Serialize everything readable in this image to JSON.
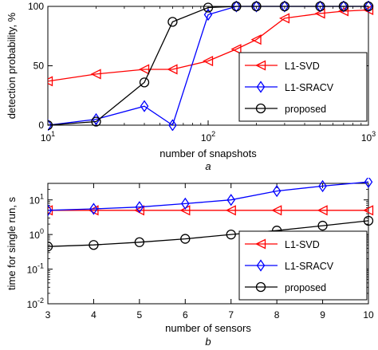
{
  "chart_data": [
    {
      "type": "line",
      "panel_label": "a",
      "xlabel": "number of snapshots",
      "ylabel": "detection probability, %",
      "xscale": "log",
      "xlim": [
        10,
        1000
      ],
      "ylim": [
        0,
        100
      ],
      "xticks": [
        10,
        100,
        1000
      ],
      "xtick_labels": [
        {
          "base": "10",
          "exp": "1"
        },
        {
          "base": "10",
          "exp": "2"
        },
        {
          "base": "10",
          "exp": "3"
        }
      ],
      "yticks": [
        0,
        50,
        100
      ],
      "ytick_labels": [
        "0",
        "50",
        "100"
      ],
      "legend_position": "bottom-right",
      "series": [
        {
          "name": "L1-SVD",
          "color": "#ff0000",
          "marker": "triangle-left",
          "x": [
            10,
            20,
            40,
            60,
            100,
            150,
            200,
            300,
            500,
            700,
            1000
          ],
          "y": [
            37,
            43,
            47,
            47,
            54,
            64,
            72,
            90,
            94,
            96,
            97
          ]
        },
        {
          "name": "L1-SRACV",
          "color": "#0000ff",
          "marker": "diamond",
          "x": [
            10,
            20,
            40,
            60,
            100,
            150,
            200,
            300,
            500,
            700,
            1000
          ],
          "y": [
            0,
            5,
            16,
            0,
            93,
            100,
            100,
            100,
            100,
            100,
            100
          ]
        },
        {
          "name": "proposed",
          "color": "#000000",
          "marker": "circle",
          "x": [
            10,
            20,
            40,
            60,
            100,
            150,
            200,
            300,
            500,
            700,
            1000
          ],
          "y": [
            0,
            3,
            36,
            87,
            99,
            100,
            100,
            100,
            100,
            100,
            100
          ]
        }
      ]
    },
    {
      "type": "line",
      "panel_label": "b",
      "xlabel": "number of sensors",
      "ylabel": "time for single run, s",
      "yscale": "log",
      "xlim": [
        3,
        10
      ],
      "ylim": [
        0.01,
        30
      ],
      "xticks": [
        3,
        4,
        5,
        6,
        7,
        8,
        9,
        10
      ],
      "xtick_labels": [
        "3",
        "4",
        "5",
        "6",
        "7",
        "8",
        "9",
        "10"
      ],
      "yticks": [
        0.01,
        0.1,
        1,
        10
      ],
      "ytick_labels": [
        {
          "base": "10",
          "exp": "-2"
        },
        {
          "base": "10",
          "exp": "-1"
        },
        {
          "base": "10",
          "exp": "0"
        },
        {
          "base": "10",
          "exp": "1"
        }
      ],
      "legend_position": "bottom-right",
      "series": [
        {
          "name": "L1-SVD",
          "color": "#ff0000",
          "marker": "triangle-left",
          "x": [
            3,
            4,
            5,
            6,
            7,
            8,
            9,
            10
          ],
          "y": [
            5,
            5,
            5,
            5,
            5,
            5,
            5,
            5
          ]
        },
        {
          "name": "L1-SRACV",
          "color": "#0000ff",
          "marker": "diamond",
          "x": [
            3,
            4,
            5,
            6,
            7,
            8,
            9,
            10
          ],
          "y": [
            5,
            5.5,
            6.2,
            7.8,
            10,
            18,
            25,
            33
          ]
        },
        {
          "name": "proposed",
          "color": "#000000",
          "marker": "circle",
          "x": [
            3,
            4,
            5,
            6,
            7,
            8,
            9,
            10
          ],
          "y": [
            0.45,
            0.5,
            0.6,
            0.75,
            1.0,
            1.3,
            1.8,
            2.5
          ]
        }
      ]
    }
  ]
}
